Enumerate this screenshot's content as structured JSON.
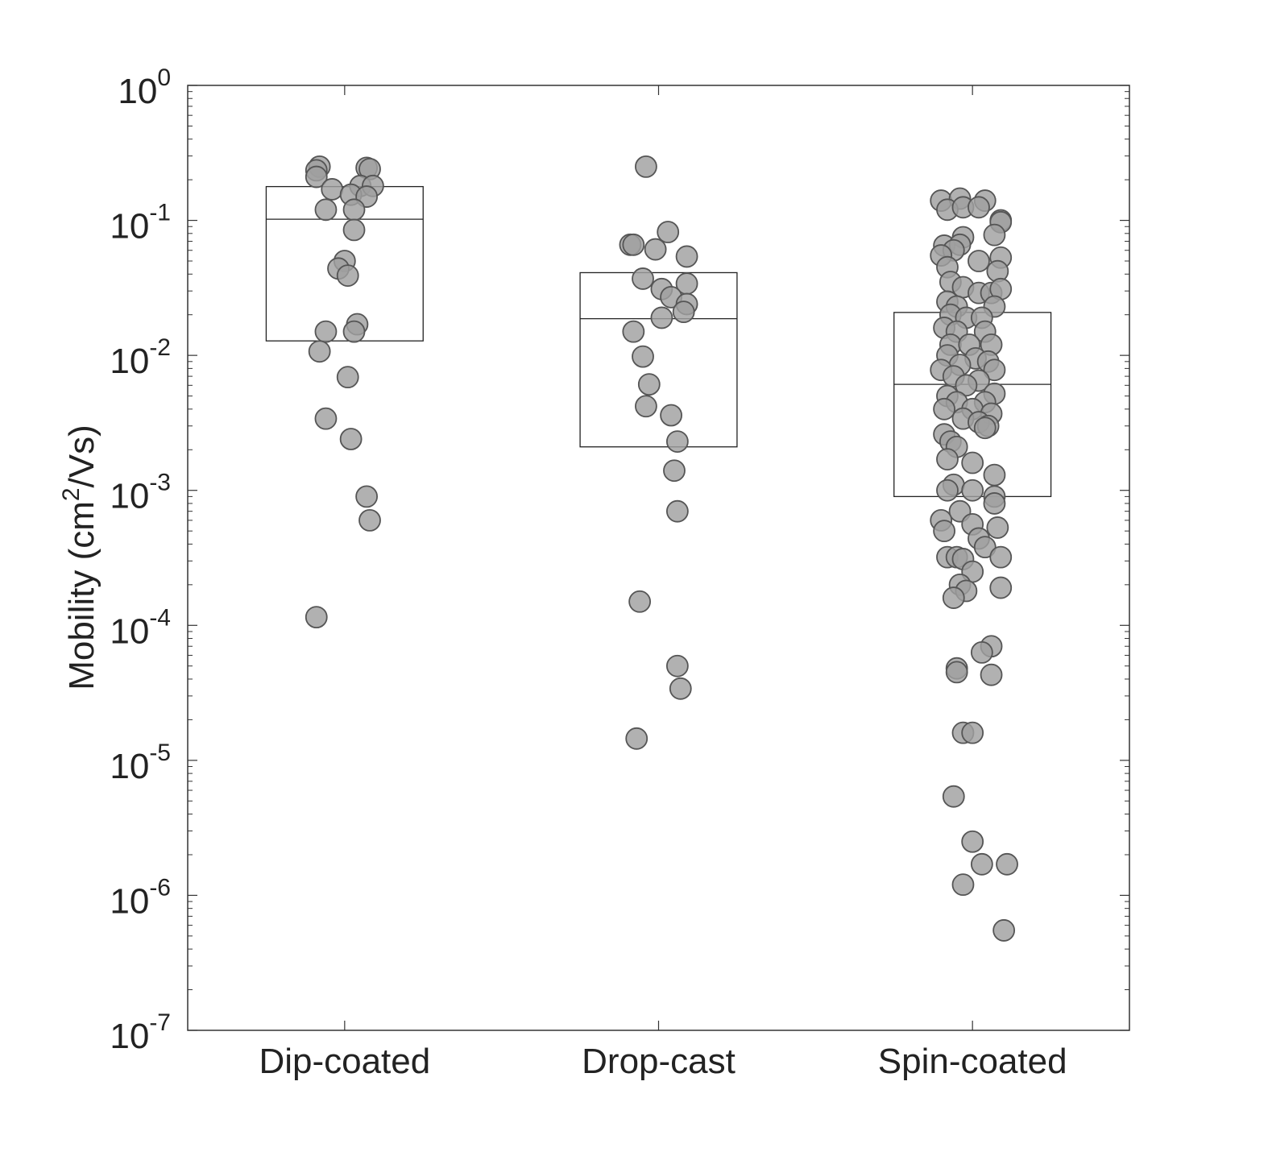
{
  "chart_data": {
    "type": "scatter",
    "title": "",
    "xlabel": "",
    "ylabel": {
      "prefix": "Mobility (cm",
      "superscript": "2",
      "suffix": "/Vs)"
    },
    "y_scale": "log",
    "ylim": [
      1e-07,
      1
    ],
    "y_ticks": [
      {
        "value": 1e-07,
        "base": "10",
        "exponent": "-7"
      },
      {
        "value": 1e-06,
        "base": "10",
        "exponent": "-6"
      },
      {
        "value": 1e-05,
        "base": "10",
        "exponent": "-5"
      },
      {
        "value": 0.0001,
        "base": "10",
        "exponent": "-4"
      },
      {
        "value": 0.001,
        "base": "10",
        "exponent": "-3"
      },
      {
        "value": 0.01,
        "base": "10",
        "exponent": "-2"
      },
      {
        "value": 0.1,
        "base": "10",
        "exponent": "-1"
      },
      {
        "value": 1,
        "base": "10",
        "exponent": "0"
      }
    ],
    "grid": false,
    "legend": "none",
    "marker_fill": "#a0a0a0",
    "marker_edge": "#555555",
    "categories": [
      "Dip-coated",
      "Drop-cast",
      "Spin-coated"
    ],
    "boxes": [
      {
        "category": "Dip-coated",
        "q1": 0.0128,
        "median": 0.102,
        "q3": 0.178
      },
      {
        "category": "Drop-cast",
        "q1": 0.0021,
        "median": 0.0187,
        "q3": 0.041
      },
      {
        "category": "Spin-coated",
        "q1": 0.0009,
        "median": 0.0061,
        "q3": 0.0208
      }
    ],
    "series": [
      {
        "category": "Dip-coated",
        "points": [
          {
            "jitter": -0.08,
            "y": 0.25
          },
          {
            "jitter": -0.09,
            "y": 0.235
          },
          {
            "jitter": -0.09,
            "y": 0.21
          },
          {
            "jitter": -0.04,
            "y": 0.17
          },
          {
            "jitter": 0.07,
            "y": 0.245
          },
          {
            "jitter": 0.08,
            "y": 0.24
          },
          {
            "jitter": 0.05,
            "y": 0.18
          },
          {
            "jitter": 0.09,
            "y": 0.18
          },
          {
            "jitter": 0.02,
            "y": 0.155
          },
          {
            "jitter": 0.07,
            "y": 0.15
          },
          {
            "jitter": -0.06,
            "y": 0.12
          },
          {
            "jitter": 0.03,
            "y": 0.12
          },
          {
            "jitter": 0.03,
            "y": 0.085
          },
          {
            "jitter": 0.0,
            "y": 0.05
          },
          {
            "jitter": -0.02,
            "y": 0.044
          },
          {
            "jitter": 0.01,
            "y": 0.039
          },
          {
            "jitter": 0.04,
            "y": 0.017
          },
          {
            "jitter": -0.06,
            "y": 0.015
          },
          {
            "jitter": 0.03,
            "y": 0.015
          },
          {
            "jitter": -0.08,
            "y": 0.0107
          },
          {
            "jitter": 0.01,
            "y": 0.0069
          },
          {
            "jitter": -0.06,
            "y": 0.0034
          },
          {
            "jitter": 0.02,
            "y": 0.0024
          },
          {
            "jitter": 0.07,
            "y": 0.0009
          },
          {
            "jitter": 0.08,
            "y": 0.0006
          },
          {
            "jitter": -0.09,
            "y": 0.000115
          }
        ]
      },
      {
        "category": "Drop-cast",
        "points": [
          {
            "jitter": -0.04,
            "y": 0.25
          },
          {
            "jitter": 0.03,
            "y": 0.082
          },
          {
            "jitter": -0.09,
            "y": 0.066
          },
          {
            "jitter": -0.08,
            "y": 0.066
          },
          {
            "jitter": -0.01,
            "y": 0.061
          },
          {
            "jitter": 0.09,
            "y": 0.054
          },
          {
            "jitter": -0.05,
            "y": 0.037
          },
          {
            "jitter": 0.09,
            "y": 0.034
          },
          {
            "jitter": 0.01,
            "y": 0.031
          },
          {
            "jitter": 0.04,
            "y": 0.027
          },
          {
            "jitter": 0.09,
            "y": 0.024
          },
          {
            "jitter": 0.08,
            "y": 0.021
          },
          {
            "jitter": 0.01,
            "y": 0.019
          },
          {
            "jitter": -0.08,
            "y": 0.015
          },
          {
            "jitter": -0.05,
            "y": 0.0098
          },
          {
            "jitter": -0.03,
            "y": 0.0061
          },
          {
            "jitter": -0.04,
            "y": 0.0042
          },
          {
            "jitter": 0.04,
            "y": 0.0036
          },
          {
            "jitter": 0.06,
            "y": 0.0023
          },
          {
            "jitter": 0.05,
            "y": 0.0014
          },
          {
            "jitter": 0.06,
            "y": 0.0007
          },
          {
            "jitter": -0.06,
            "y": 0.00015
          },
          {
            "jitter": 0.06,
            "y": 5e-05
          },
          {
            "jitter": 0.07,
            "y": 3.4e-05
          },
          {
            "jitter": -0.07,
            "y": 1.45e-05
          }
        ]
      },
      {
        "category": "Spin-coated",
        "points": [
          {
            "jitter": -0.1,
            "y": 0.14
          },
          {
            "jitter": -0.04,
            "y": 0.145
          },
          {
            "jitter": 0.04,
            "y": 0.14
          },
          {
            "jitter": -0.08,
            "y": 0.12
          },
          {
            "jitter": -0.03,
            "y": 0.125
          },
          {
            "jitter": 0.02,
            "y": 0.125
          },
          {
            "jitter": 0.09,
            "y": 0.1
          },
          {
            "jitter": 0.09,
            "y": 0.097
          },
          {
            "jitter": -0.03,
            "y": 0.075
          },
          {
            "jitter": 0.07,
            "y": 0.078
          },
          {
            "jitter": -0.09,
            "y": 0.065
          },
          {
            "jitter": -0.04,
            "y": 0.066
          },
          {
            "jitter": -0.06,
            "y": 0.06
          },
          {
            "jitter": -0.1,
            "y": 0.055
          },
          {
            "jitter": 0.02,
            "y": 0.05
          },
          {
            "jitter": 0.09,
            "y": 0.053
          },
          {
            "jitter": -0.08,
            "y": 0.045
          },
          {
            "jitter": -0.07,
            "y": 0.035
          },
          {
            "jitter": 0.08,
            "y": 0.042
          },
          {
            "jitter": -0.03,
            "y": 0.032
          },
          {
            "jitter": 0.02,
            "y": 0.029
          },
          {
            "jitter": 0.06,
            "y": 0.029
          },
          {
            "jitter": 0.09,
            "y": 0.031
          },
          {
            "jitter": -0.08,
            "y": 0.025
          },
          {
            "jitter": -0.05,
            "y": 0.023
          },
          {
            "jitter": 0.07,
            "y": 0.023
          },
          {
            "jitter": -0.07,
            "y": 0.02
          },
          {
            "jitter": -0.02,
            "y": 0.019
          },
          {
            "jitter": 0.03,
            "y": 0.019
          },
          {
            "jitter": -0.09,
            "y": 0.016
          },
          {
            "jitter": -0.05,
            "y": 0.015
          },
          {
            "jitter": 0.04,
            "y": 0.015
          },
          {
            "jitter": -0.07,
            "y": 0.012
          },
          {
            "jitter": -0.01,
            "y": 0.012
          },
          {
            "jitter": 0.06,
            "y": 0.012
          },
          {
            "jitter": -0.08,
            "y": 0.01
          },
          {
            "jitter": 0.01,
            "y": 0.0095
          },
          {
            "jitter": 0.05,
            "y": 0.009
          },
          {
            "jitter": -0.04,
            "y": 0.0085
          },
          {
            "jitter": -0.1,
            "y": 0.0078
          },
          {
            "jitter": 0.07,
            "y": 0.0078
          },
          {
            "jitter": -0.06,
            "y": 0.007
          },
          {
            "jitter": 0.02,
            "y": 0.0065
          },
          {
            "jitter": -0.02,
            "y": 0.006
          },
          {
            "jitter": -0.08,
            "y": 0.005
          },
          {
            "jitter": 0.07,
            "y": 0.0052
          },
          {
            "jitter": -0.05,
            "y": 0.0045
          },
          {
            "jitter": 0.04,
            "y": 0.0045
          },
          {
            "jitter": -0.09,
            "y": 0.004
          },
          {
            "jitter": 0.0,
            "y": 0.004
          },
          {
            "jitter": 0.06,
            "y": 0.0037
          },
          {
            "jitter": -0.03,
            "y": 0.0034
          },
          {
            "jitter": 0.02,
            "y": 0.0032
          },
          {
            "jitter": 0.05,
            "y": 0.003
          },
          {
            "jitter": -0.09,
            "y": 0.0026
          },
          {
            "jitter": -0.07,
            "y": 0.0023
          },
          {
            "jitter": -0.05,
            "y": 0.0021
          },
          {
            "jitter": 0.04,
            "y": 0.0029
          },
          {
            "jitter": -0.08,
            "y": 0.0017
          },
          {
            "jitter": 0.0,
            "y": 0.0016
          },
          {
            "jitter": 0.07,
            "y": 0.0013
          },
          {
            "jitter": -0.06,
            "y": 0.0011
          },
          {
            "jitter": -0.08,
            "y": 0.001
          },
          {
            "jitter": 0.0,
            "y": 0.001
          },
          {
            "jitter": 0.07,
            "y": 0.0009
          },
          {
            "jitter": 0.07,
            "y": 0.0008
          },
          {
            "jitter": -0.04,
            "y": 0.0007
          },
          {
            "jitter": -0.1,
            "y": 0.0006
          },
          {
            "jitter": 0.0,
            "y": 0.00056
          },
          {
            "jitter": 0.08,
            "y": 0.00053
          },
          {
            "jitter": -0.09,
            "y": 0.0005
          },
          {
            "jitter": 0.02,
            "y": 0.00044
          },
          {
            "jitter": 0.04,
            "y": 0.00038
          },
          {
            "jitter": -0.08,
            "y": 0.00032
          },
          {
            "jitter": -0.05,
            "y": 0.00032
          },
          {
            "jitter": -0.03,
            "y": 0.00031
          },
          {
            "jitter": 0.09,
            "y": 0.00032
          },
          {
            "jitter": 0.0,
            "y": 0.00025
          },
          {
            "jitter": -0.04,
            "y": 0.0002
          },
          {
            "jitter": 0.09,
            "y": 0.00019
          },
          {
            "jitter": -0.02,
            "y": 0.00018
          },
          {
            "jitter": -0.06,
            "y": 0.00016
          },
          {
            "jitter": 0.06,
            "y": 7e-05
          },
          {
            "jitter": 0.03,
            "y": 6.3e-05
          },
          {
            "jitter": -0.05,
            "y": 4.8e-05
          },
          {
            "jitter": -0.05,
            "y": 4.5e-05
          },
          {
            "jitter": 0.06,
            "y": 4.3e-05
          },
          {
            "jitter": -0.03,
            "y": 1.6e-05
          },
          {
            "jitter": 0.0,
            "y": 1.6e-05
          },
          {
            "jitter": -0.06,
            "y": 5.4e-06
          },
          {
            "jitter": 0.0,
            "y": 2.5e-06
          },
          {
            "jitter": 0.03,
            "y": 1.7e-06
          },
          {
            "jitter": 0.11,
            "y": 1.7e-06
          },
          {
            "jitter": -0.03,
            "y": 1.2e-06
          },
          {
            "jitter": 0.1,
            "y": 5.5e-07
          }
        ]
      }
    ]
  }
}
